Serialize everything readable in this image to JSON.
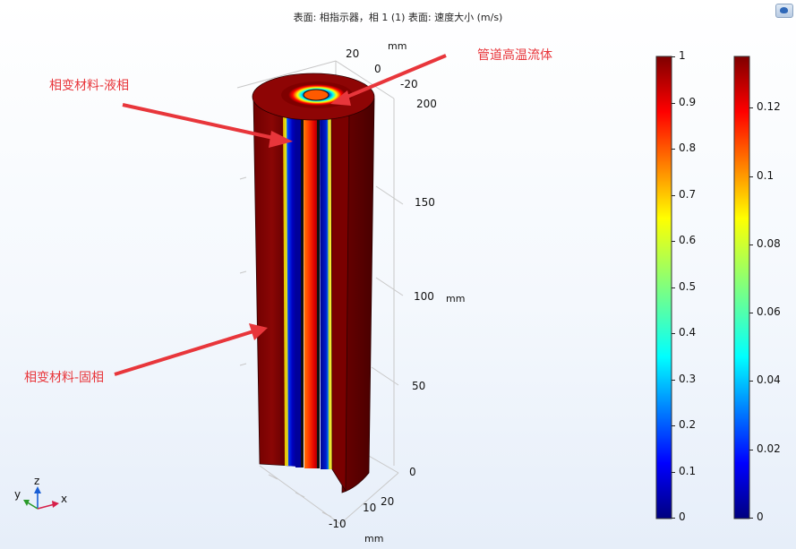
{
  "title": "表面: 相指示器，相 1 (1)  表面: 速度大小 (m/s)",
  "annotations": {
    "liquid": "相变材料-液相",
    "solid": "相变材料-固相",
    "fluid": "管道高温流体"
  },
  "axes": {
    "y_ticks": [
      "20",
      "0",
      "-20"
    ],
    "y_unit": "mm",
    "z_ticks": [
      "200",
      "150",
      "100",
      "50",
      "0"
    ],
    "z_unit": "mm",
    "x_ticks": [
      "20",
      "10",
      "-10"
    ],
    "x_unit": "mm"
  },
  "triad": {
    "x": "x",
    "y": "y",
    "z": "z"
  },
  "colorbar_phase": {
    "ticks": [
      "1",
      "0.9",
      "0.8",
      "0.7",
      "0.6",
      "0.5",
      "0.4",
      "0.3",
      "0.2",
      "0.1",
      "0"
    ]
  },
  "colorbar_velocity": {
    "ticks": [
      "0.12",
      "0.1",
      "0.08",
      "0.06",
      "0.04",
      "0.02",
      "0"
    ]
  },
  "colors": {
    "annotation": "#e8363b",
    "colormap": "jet"
  }
}
